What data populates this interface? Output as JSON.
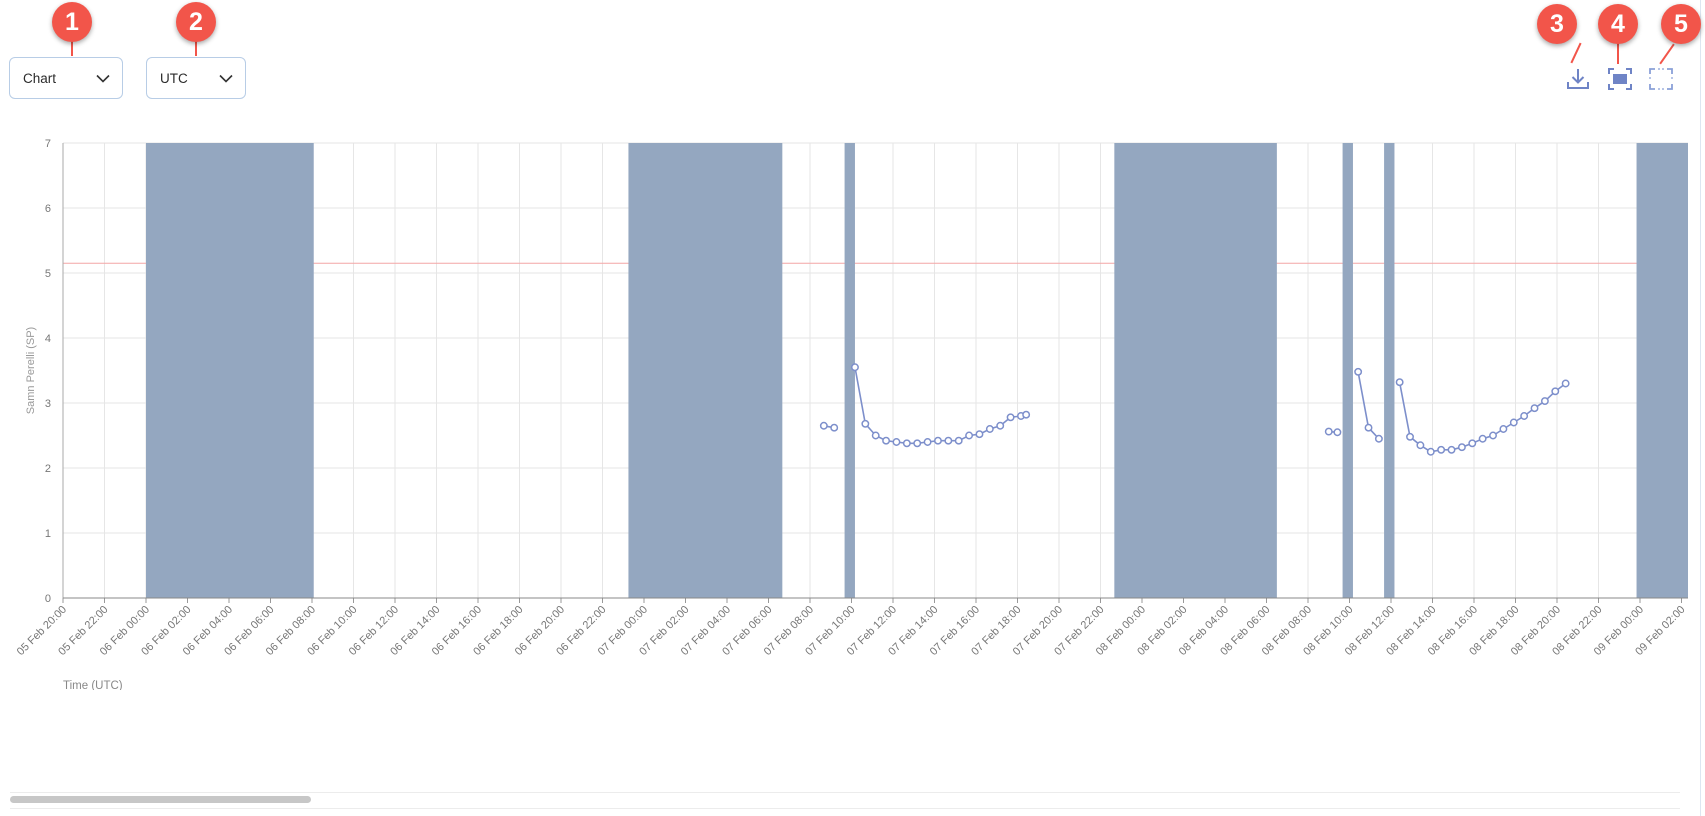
{
  "toolbar": {
    "view_select": {
      "value": "Chart"
    },
    "timezone_select": {
      "value": "UTC"
    },
    "download_icon": "download-icon",
    "fit_icon": "fit-screen-icon",
    "fullscreen_icon": "fullscreen-icon"
  },
  "annotations": [
    "1",
    "2",
    "3",
    "4",
    "5"
  ],
  "colors": {
    "band": "#94a7c0",
    "series": "#7d8fcb",
    "threshold": "#f4a6a6",
    "grid": "#e6e6e6",
    "badge": "#f2554a"
  },
  "chart_data": {
    "type": "line",
    "title": "",
    "xlabel": "Time (UTC)",
    "ylabel": "Samn Perelli (SP)",
    "ylim": [
      0,
      7
    ],
    "yticks": [
      "0",
      "1",
      "2",
      "3",
      "4",
      "5",
      "6",
      "7"
    ],
    "xlim": [
      "2024-02-05T20:00",
      "2024-02-09T03:00"
    ],
    "xtick_labels": [
      "05 Feb 20:00",
      "05 Feb 22:00",
      "06 Feb 00:00",
      "06 Feb 02:00",
      "06 Feb 04:00",
      "06 Feb 06:00",
      "06 Feb 08:00",
      "06 Feb 10:00",
      "06 Feb 12:00",
      "06 Feb 14:00",
      "06 Feb 16:00",
      "06 Feb 18:00",
      "06 Feb 20:00",
      "06 Feb 22:00",
      "07 Feb 00:00",
      "07 Feb 02:00",
      "07 Feb 04:00",
      "07 Feb 06:00",
      "07 Feb 08:00",
      "07 Feb 10:00",
      "07 Feb 12:00",
      "07 Feb 14:00",
      "07 Feb 16:00",
      "07 Feb 18:00",
      "07 Feb 20:00",
      "07 Feb 22:00",
      "08 Feb 00:00",
      "08 Feb 02:00",
      "08 Feb 04:00",
      "08 Feb 06:00",
      "08 Feb 08:00",
      "08 Feb 10:00",
      "08 Feb 12:00",
      "08 Feb 14:00",
      "08 Feb 16:00",
      "08 Feb 18:00",
      "08 Feb 20:00",
      "08 Feb 22:00",
      "09 Feb 00:00",
      "09 Feb 02:00",
      "09 F"
    ],
    "grid": true,
    "threshold_y": 5.15,
    "sleep_bands": [
      {
        "start": "2024-02-06T00:00",
        "end": "2024-02-06T08:05"
      },
      {
        "start": "2024-02-06T23:15",
        "end": "2024-02-07T06:40"
      },
      {
        "start": "2024-02-07T09:40",
        "end": "2024-02-07T10:10"
      },
      {
        "start": "2024-02-07T22:40",
        "end": "2024-02-08T06:30"
      },
      {
        "start": "2024-02-08T09:40",
        "end": "2024-02-08T10:10"
      },
      {
        "start": "2024-02-08T11:40",
        "end": "2024-02-08T12:10"
      },
      {
        "start": "2024-02-08T23:50",
        "end": "2024-02-09T03:00"
      }
    ],
    "series": [
      {
        "segments": [
          {
            "points": [
              [
                "2024-02-07T08:40",
                2.65
              ],
              [
                "2024-02-07T09:10",
                2.62
              ]
            ]
          },
          {
            "points": [
              [
                "2024-02-07T10:10",
                3.55
              ],
              [
                "2024-02-07T10:40",
                2.68
              ],
              [
                "2024-02-07T11:10",
                2.5
              ],
              [
                "2024-02-07T11:40",
                2.42
              ],
              [
                "2024-02-07T12:10",
                2.4
              ],
              [
                "2024-02-07T12:40",
                2.38
              ],
              [
                "2024-02-07T13:10",
                2.38
              ],
              [
                "2024-02-07T13:40",
                2.4
              ],
              [
                "2024-02-07T14:10",
                2.42
              ],
              [
                "2024-02-07T14:40",
                2.42
              ],
              [
                "2024-02-07T15:10",
                2.42
              ],
              [
                "2024-02-07T15:40",
                2.5
              ],
              [
                "2024-02-07T16:10",
                2.52
              ],
              [
                "2024-02-07T16:40",
                2.6
              ],
              [
                "2024-02-07T17:10",
                2.65
              ],
              [
                "2024-02-07T17:40",
                2.78
              ],
              [
                "2024-02-07T18:10",
                2.8
              ],
              [
                "2024-02-07T18:25",
                2.82
              ]
            ]
          },
          {
            "points": [
              [
                "2024-02-08T09:00",
                2.56
              ],
              [
                "2024-02-08T09:25",
                2.55
              ]
            ]
          },
          {
            "points": [
              [
                "2024-02-08T10:25",
                3.48
              ],
              [
                "2024-02-08T10:55",
                2.62
              ],
              [
                "2024-02-08T11:25",
                2.45
              ]
            ]
          },
          {
            "points": [
              [
                "2024-02-08T12:25",
                3.32
              ],
              [
                "2024-02-08T12:55",
                2.48
              ],
              [
                "2024-02-08T13:25",
                2.35
              ],
              [
                "2024-02-08T13:55",
                2.25
              ],
              [
                "2024-02-08T14:25",
                2.28
              ],
              [
                "2024-02-08T14:55",
                2.28
              ],
              [
                "2024-02-08T15:25",
                2.32
              ],
              [
                "2024-02-08T15:55",
                2.38
              ],
              [
                "2024-02-08T16:25",
                2.45
              ],
              [
                "2024-02-08T16:55",
                2.5
              ],
              [
                "2024-02-08T17:25",
                2.6
              ],
              [
                "2024-02-08T17:55",
                2.7
              ],
              [
                "2024-02-08T18:25",
                2.8
              ],
              [
                "2024-02-08T18:55",
                2.92
              ],
              [
                "2024-02-08T19:25",
                3.03
              ],
              [
                "2024-02-08T19:55",
                3.18
              ],
              [
                "2024-02-08T20:25",
                3.3
              ]
            ]
          }
        ]
      }
    ]
  }
}
